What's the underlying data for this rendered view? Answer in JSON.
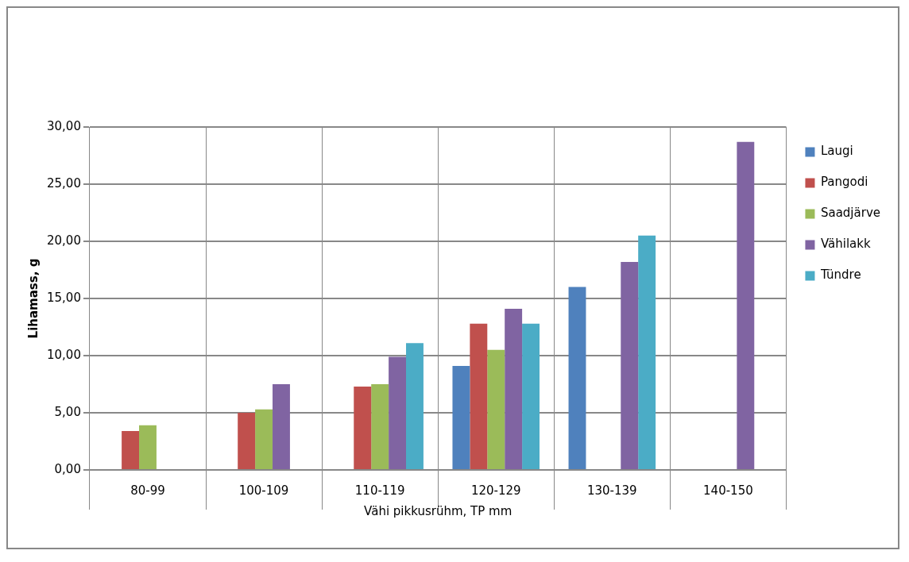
{
  "chart_data": {
    "type": "bar",
    "ylabel": "Lihamass, g",
    "xlabel": "Vähi pikkusrühm, TP mm",
    "categories": [
      "80-99",
      "100-109",
      "110-119",
      "120-129",
      "130-139",
      "140-150"
    ],
    "series": [
      {
        "name": "Laugi",
        "color": "#4f81bd",
        "values": [
          null,
          null,
          null,
          9.1,
          16.0,
          null
        ]
      },
      {
        "name": "Pangodi",
        "color": "#c0504d",
        "values": [
          3.4,
          5.0,
          7.3,
          12.8,
          null,
          null
        ]
      },
      {
        "name": "Saadjärve",
        "color": "#9bbb59",
        "values": [
          3.9,
          5.3,
          7.5,
          10.5,
          null,
          null
        ]
      },
      {
        "name": "Vähilakk",
        "color": "#8064a2",
        "values": [
          null,
          7.5,
          9.9,
          14.1,
          18.2,
          28.7
        ]
      },
      {
        "name": "Tündre",
        "color": "#4bacc6",
        "values": [
          null,
          null,
          11.1,
          12.8,
          20.5,
          null
        ]
      }
    ],
    "ylim": [
      0,
      30
    ],
    "yticks": [
      {
        "value": 0,
        "label": "0,00"
      },
      {
        "value": 5,
        "label": "5,00"
      },
      {
        "value": 10,
        "label": "10,00"
      },
      {
        "value": 15,
        "label": "15,00"
      },
      {
        "value": 20,
        "label": "20,00"
      },
      {
        "value": 25,
        "label": "25,00"
      },
      {
        "value": 30,
        "label": "30,00"
      }
    ],
    "grid": "y",
    "legend": "right"
  }
}
